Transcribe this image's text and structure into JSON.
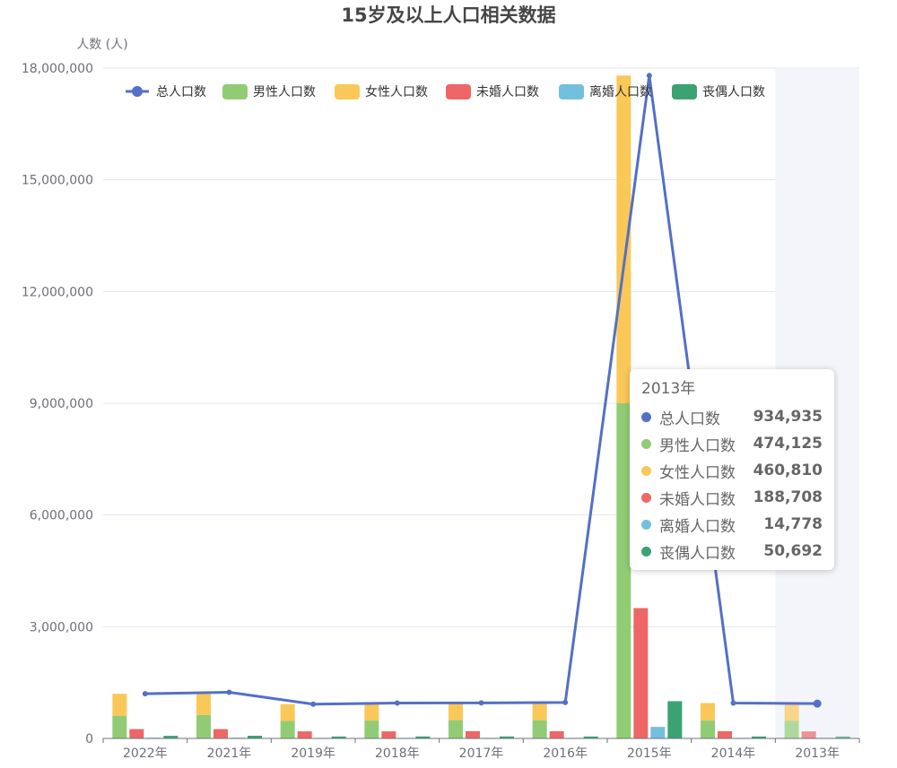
{
  "chart_data": {
    "type": "bar",
    "title": "15岁及以上人口相关数据",
    "ylabel": "人数 (人)",
    "ylim": [
      0,
      18000000
    ],
    "ytick_labels": [
      "0",
      "3,000,000",
      "6,000,000",
      "9,000,000",
      "12,000,000",
      "15,000,000",
      "18,000,000"
    ],
    "categories": [
      "2022年",
      "2021年",
      "2019年",
      "2018年",
      "2017年",
      "2016年",
      "2015年",
      "2014年",
      "2013年"
    ],
    "grid": true,
    "legend_position": "top-left",
    "series": [
      {
        "name": "总人口数",
        "type": "line",
        "color": "#5470c6",
        "values": [
          1200000,
          1240000,
          920000,
          950000,
          955000,
          965000,
          17800000,
          950000,
          934935
        ]
      },
      {
        "name": "男性人口数",
        "type": "bar",
        "stack": "gender",
        "color": "#91cc75",
        "values": [
          610000,
          630000,
          470000,
          480000,
          490000,
          490000,
          9000000,
          480000,
          474125
        ]
      },
      {
        "name": "女性人口数",
        "type": "bar",
        "stack": "gender",
        "color": "#fac858",
        "values": [
          590000,
          610000,
          450000,
          470000,
          465000,
          475000,
          8800000,
          470000,
          460810
        ]
      },
      {
        "name": "未婚人口数",
        "type": "bar",
        "color": "#ee6666",
        "values": [
          250000,
          250000,
          190000,
          190000,
          195000,
          195000,
          3500000,
          195000,
          188708
        ]
      },
      {
        "name": "离婚人口数",
        "type": "bar",
        "color": "#73c0de",
        "values": [
          20000,
          20000,
          15000,
          15000,
          15000,
          15000,
          310000,
          15000,
          14778
        ]
      },
      {
        "name": "丧偶人口数",
        "type": "bar",
        "color": "#3ba272",
        "values": [
          70000,
          72000,
          52000,
          53000,
          53000,
          52000,
          1000000,
          52000,
          50692
        ]
      }
    ],
    "highlight_index": 8
  },
  "tooltip": {
    "title": "2013年",
    "rows": [
      {
        "name": "总人口数",
        "value": "934,935",
        "color": "#5470c6"
      },
      {
        "name": "男性人口数",
        "value": "474,125",
        "color": "#91cc75"
      },
      {
        "name": "女性人口数",
        "value": "460,810",
        "color": "#fac858"
      },
      {
        "name": "未婚人口数",
        "value": "188,708",
        "color": "#ee6666"
      },
      {
        "name": "离婚人口数",
        "value": "14,778",
        "color": "#73c0de"
      },
      {
        "name": "丧偶人口数",
        "value": "50,692",
        "color": "#3ba272"
      }
    ]
  }
}
